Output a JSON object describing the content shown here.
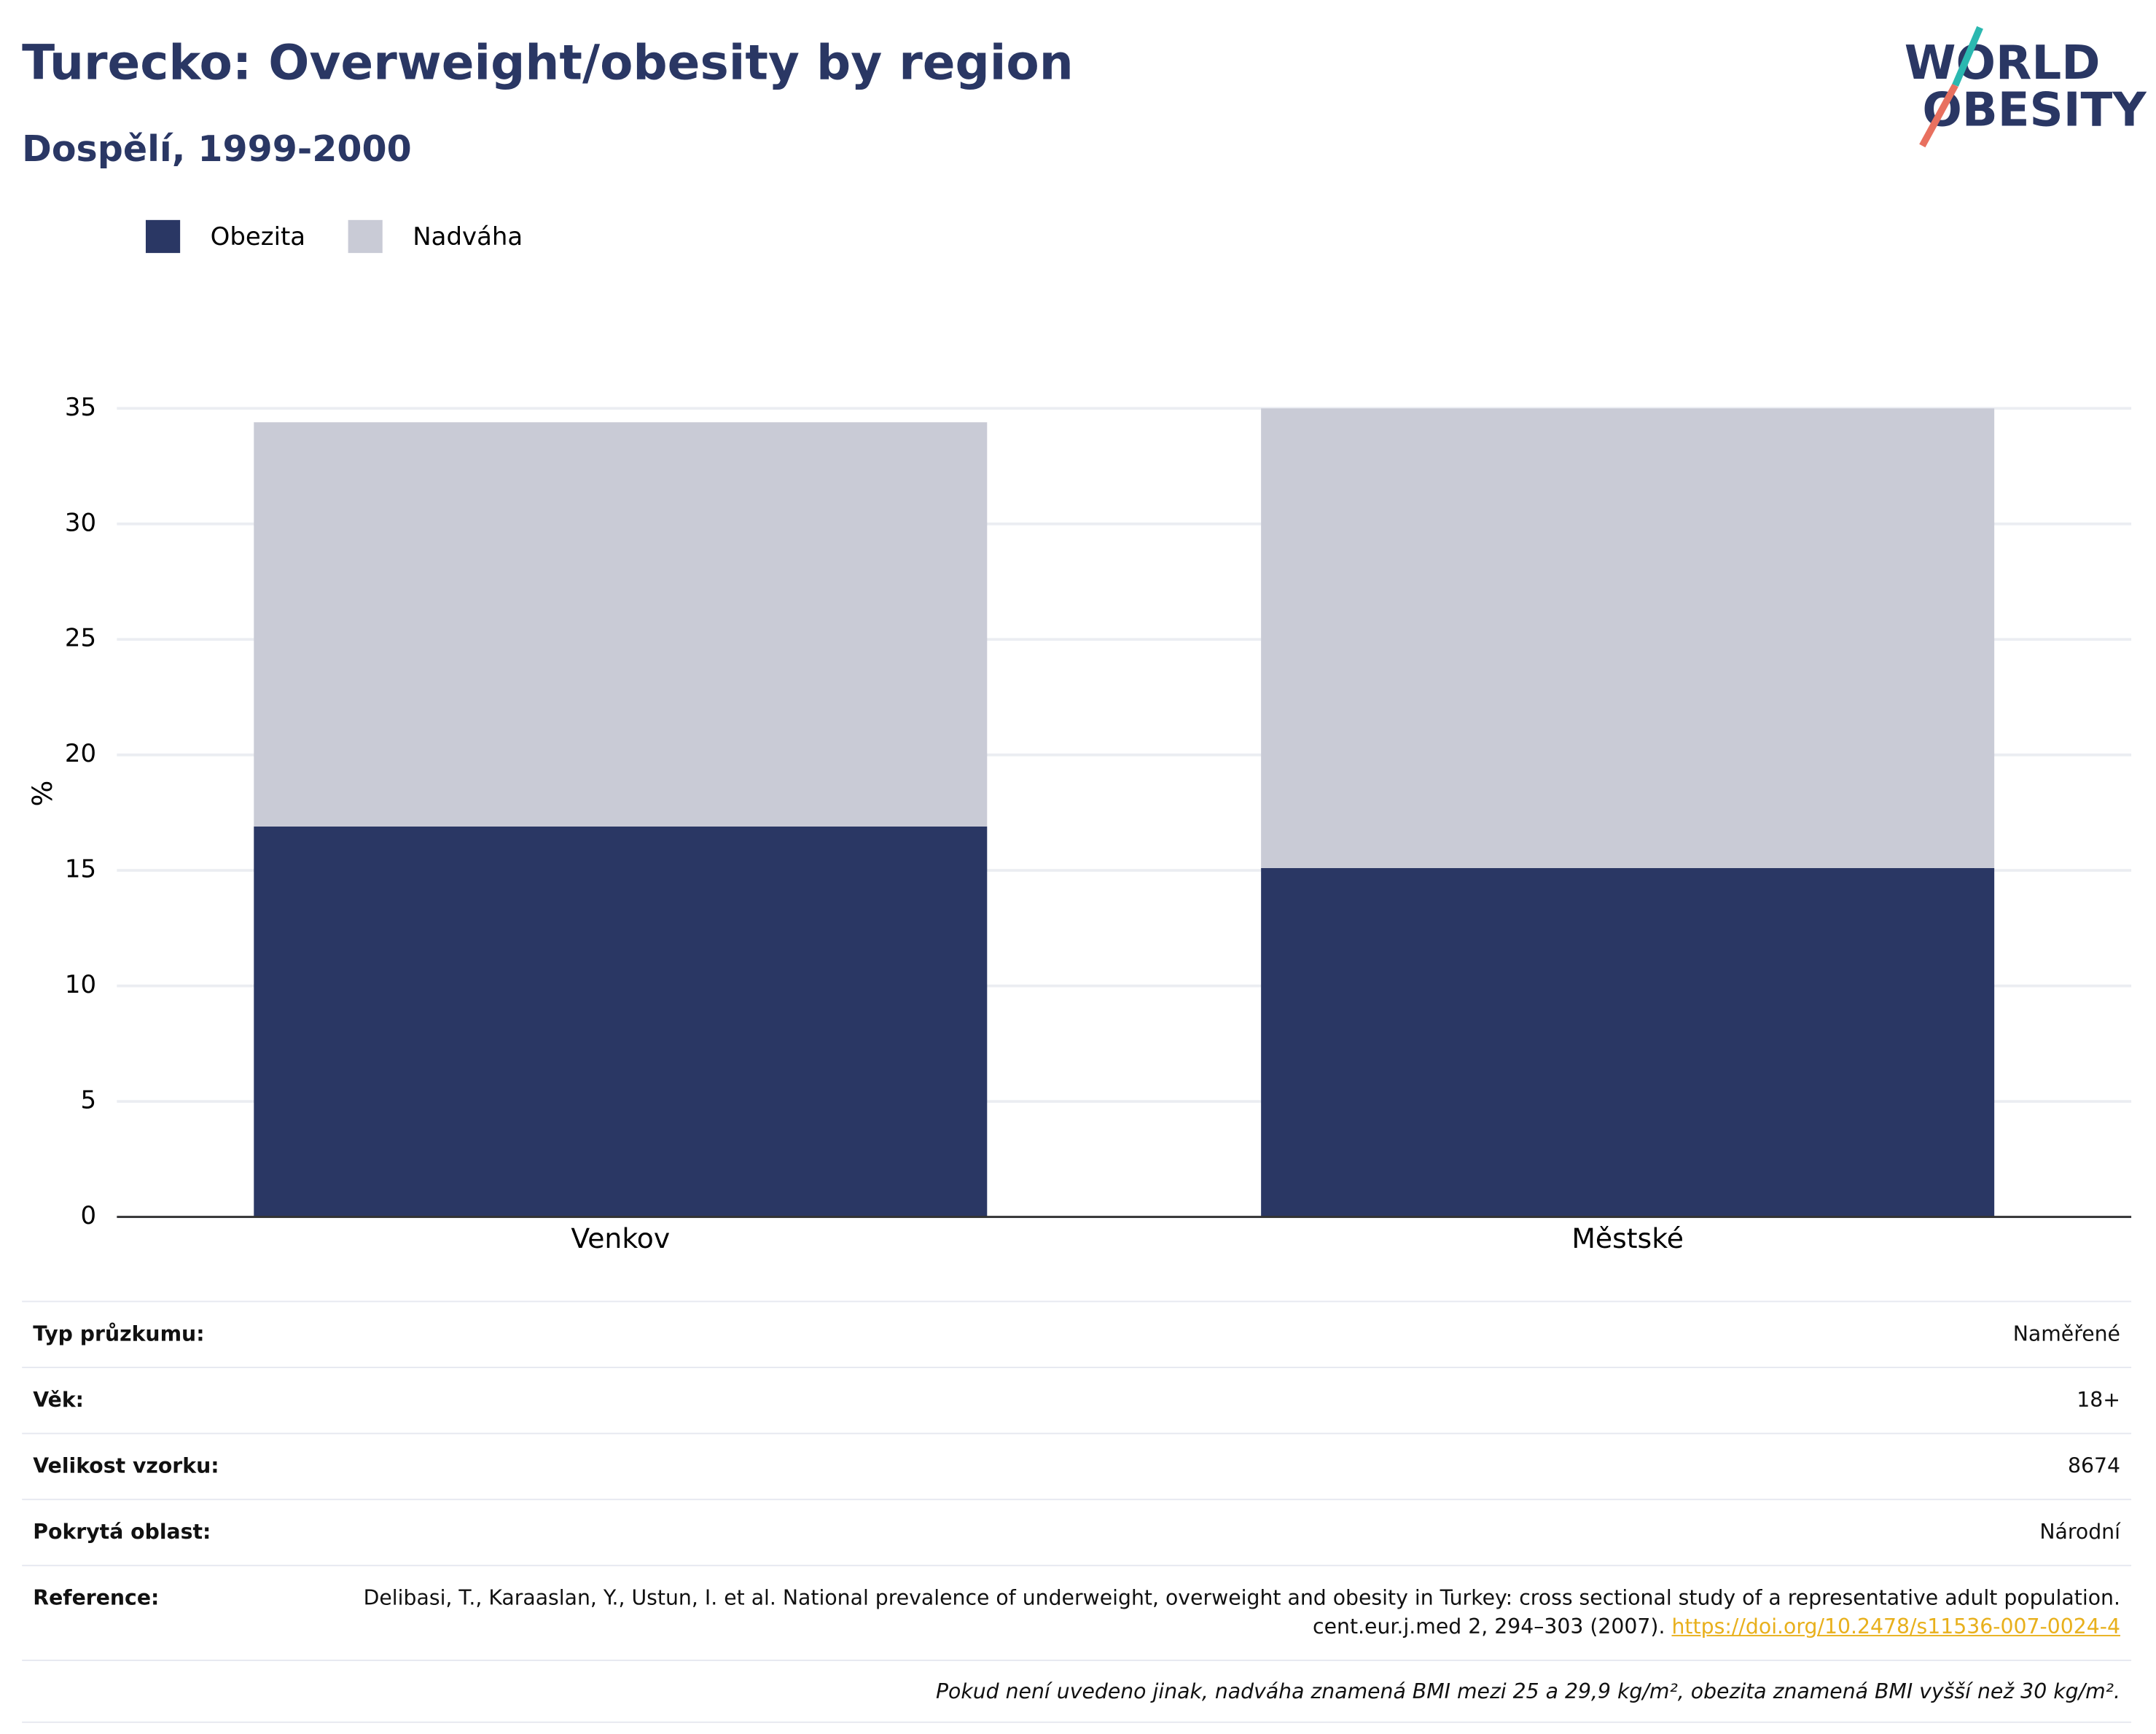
{
  "chart_data": {
    "type": "stacked-bar",
    "title": "Turecko: Overweight/obesity by region",
    "subtitle": "Dospělí, 1999-2000",
    "y_label": "%",
    "categories": [
      "Venkov",
      "Městské"
    ],
    "series": [
      {
        "name": "Obezita",
        "color": "#2a3764",
        "values": [
          16.9,
          15.1
        ]
      },
      {
        "name": "Nadváha",
        "color": "#c9cbd6",
        "values": [
          17.5,
          19.9
        ]
      }
    ],
    "ylim": [
      0,
      35
    ],
    "yticks": [
      0,
      5,
      10,
      15,
      20,
      25,
      30,
      35
    ],
    "grid": true,
    "legend": "top-left"
  },
  "logo": {
    "line1": "WORLD",
    "line2": "OBESITY"
  },
  "info": {
    "rows": [
      [
        "Typ průzkumu:",
        "Naměřené"
      ],
      [
        "Věk:",
        "18+"
      ],
      [
        "Velikost vzorku:",
        "8674"
      ],
      [
        "Pokrytá oblast:",
        "Národní"
      ]
    ],
    "reference": {
      "label": "Reference:",
      "text": "Delibasi, T., Karaaslan, Y., Ustun, I. et al. National prevalence of underweight, overweight and obesity in Turkey: cross sectional study of a representative adult population. cent.eur.j.med 2, 294–303 (2007).",
      "link": "https://doi.org/10.2478/s11536-007-0024-4"
    },
    "note": "Pokud není uvedeno jinak, nadváha znamená BMI mezi 25 a 29,9 kg/m², obezita znamená BMI vyšší než 30 kg/m²."
  }
}
